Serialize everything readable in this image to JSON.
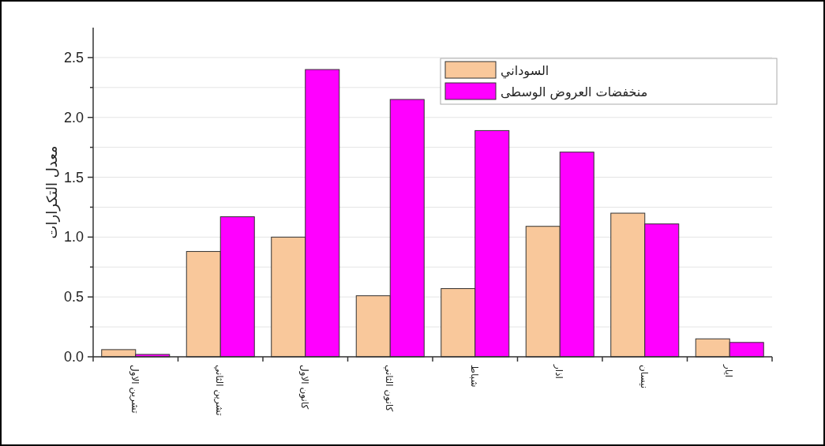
{
  "chart_data": {
    "type": "bar",
    "ylabel": "معدل التكرارات",
    "categories": [
      "تشرين الاول",
      "تشرين الثاني",
      "كانون الاول",
      "كانون الثاني",
      "شباط",
      "اذار",
      "نيسان",
      "ايار"
    ],
    "series": [
      {
        "name": "السوداني",
        "color": "#f9c89b",
        "values": [
          0.06,
          0.88,
          1.0,
          0.51,
          0.57,
          1.09,
          1.2,
          0.15
        ]
      },
      {
        "name": "منخفضات العروض الوسطى",
        "color": "#ff00ff",
        "values": [
          0.02,
          1.17,
          2.4,
          2.15,
          1.89,
          1.71,
          1.11,
          0.12
        ]
      }
    ],
    "ylim": [
      0,
      2.75
    ],
    "yticks": [
      {
        "value": 0,
        "label": "0.0"
      },
      {
        "value": 0.5,
        "label": "0.5"
      },
      {
        "value": 1,
        "label": "1.0"
      },
      {
        "value": 1.5,
        "label": "1.5"
      },
      {
        "value": 2,
        "label": "2.0"
      },
      {
        "value": 2.5,
        "label": "2.5"
      }
    ],
    "grid": "y",
    "legend": "top right"
  }
}
